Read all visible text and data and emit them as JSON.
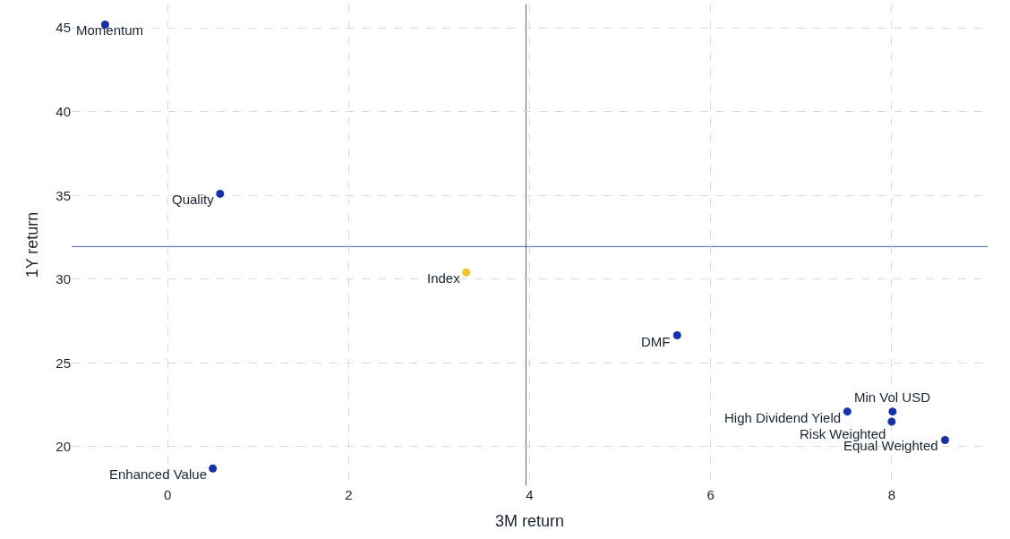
{
  "chart_data": {
    "type": "scatter",
    "xlabel": "3M return",
    "ylabel": "1Y return",
    "x": [
      -0.69,
      0.58,
      3.3,
      5.63,
      7.51,
      8.01,
      8.0,
      8.59,
      0.5
    ],
    "series": [
      {
        "values": [
          45.2,
          35.1,
          30.4,
          26.65,
          22.1,
          22.1,
          21.5,
          20.4,
          18.7
        ],
        "colors": [
          "#1531a8",
          "#1531a8",
          "#f5c230",
          "#1531a8",
          "#1531a8",
          "#1531a8",
          "#1531a8",
          "#1531a8",
          "#1531a8"
        ]
      }
    ],
    "annotations": [
      {
        "text": "Momentum",
        "x": -0.69,
        "y": 45.2
      },
      {
        "text": "Quality",
        "x": 0.58,
        "y": 35.1
      },
      {
        "text": "Index",
        "x": 3.3,
        "y": 30.4
      },
      {
        "text": "DMF",
        "x": 5.63,
        "y": 26.65
      },
      {
        "text": "High Dividend Yield",
        "x": 7.51,
        "y": 22.1
      },
      {
        "text": "Min Vol USD",
        "x": 8.01,
        "y": 22.1
      },
      {
        "text": "Risk Weighted",
        "x": 8.0,
        "y": 21.5
      },
      {
        "text": "Equal Weighted",
        "x": 8.59,
        "y": 20.4
      },
      {
        "text": "Enhanced Value",
        "x": 0.5,
        "y": 18.7
      }
    ],
    "ref_lines": [
      {
        "axis": "x",
        "value": 3.96,
        "color": "#4a64a8"
      },
      {
        "axis": "y",
        "value": 31.95,
        "color": "#4a64a8"
      }
    ],
    "xlim": [
      -1.06,
      9.06
    ],
    "xticks": [
      0,
      2,
      4,
      6,
      8
    ],
    "ylim": [
      17.7,
      46.4
    ],
    "yticks": [
      20,
      25,
      30,
      35,
      40,
      45
    ],
    "grid": true
  }
}
